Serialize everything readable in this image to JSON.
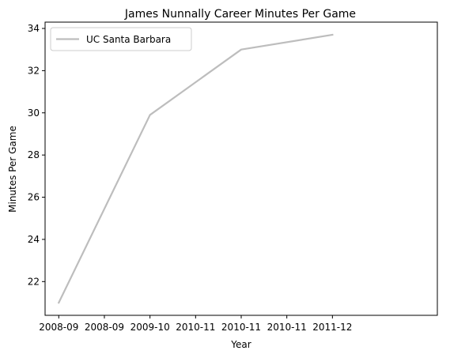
{
  "chart_data": {
    "type": "line",
    "title": "James Nunnally Career Minutes Per Game",
    "xlabel": "Year",
    "ylabel": "Minutes Per Game",
    "x_tick_labels": [
      "2008-09",
      "2008-09",
      "2009-10",
      "2010-11",
      "2010-11",
      "2010-11",
      "2011-12"
    ],
    "y_ticks": [
      22,
      24,
      26,
      28,
      30,
      32,
      34
    ],
    "ylim": [
      20.4,
      34.3
    ],
    "xlim": [
      -0.15,
      4.15
    ],
    "grid": false,
    "legend_position": "upper-left",
    "series": [
      {
        "name": "UC Santa Barbara",
        "color": "#bdbdbd",
        "x": [
          "2008-09",
          "2009-10",
          "2010-11",
          "2011-12"
        ],
        "values": [
          21.0,
          29.9,
          33.0,
          33.7
        ]
      }
    ]
  }
}
